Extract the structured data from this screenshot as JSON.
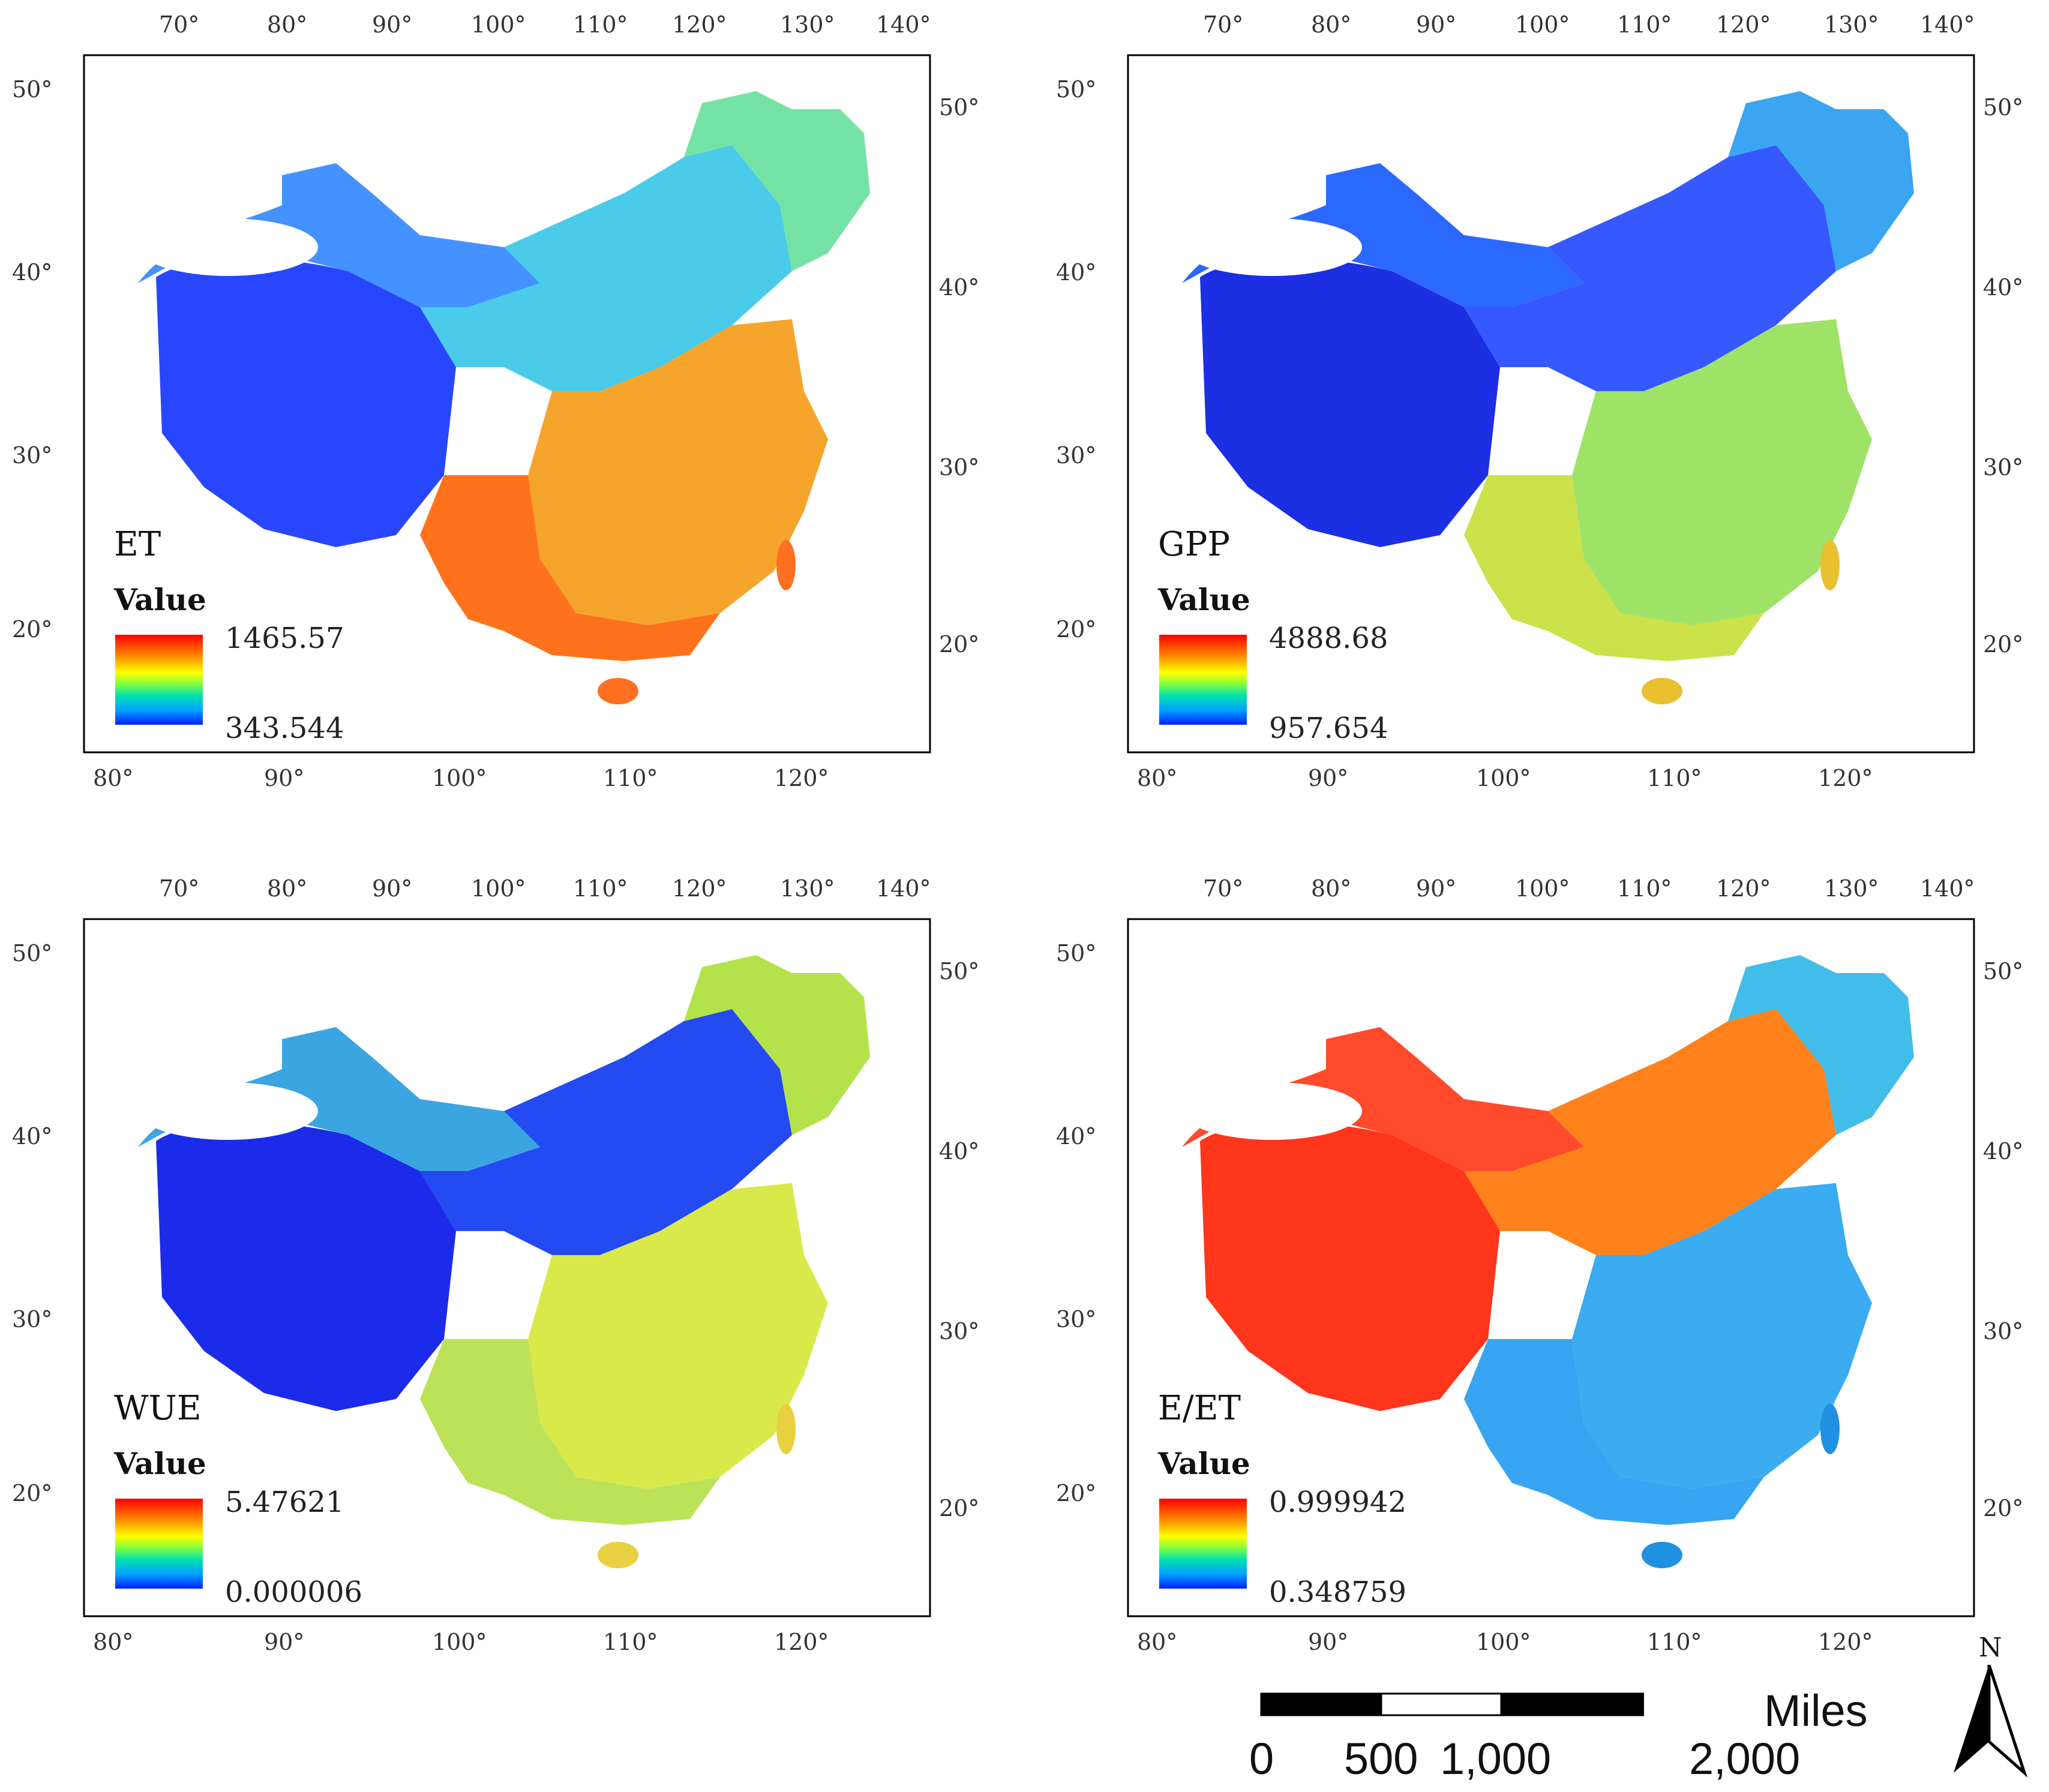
{
  "panels": [
    {
      "id": "et",
      "variable": "ET",
      "legend_title": "Value",
      "legend_max": "1465.57",
      "legend_min": "343.544",
      "top_lon_ticks": [
        "70°",
        "80°",
        "90°",
        "100°",
        "110°",
        "120°",
        "130°",
        "140°"
      ],
      "bottom_lon_ticks": [
        "80°",
        "90°",
        "100°",
        "110°",
        "120°"
      ],
      "left_lat_ticks": [
        "50°",
        "40°",
        "30°",
        "20°"
      ],
      "right_lat_ticks": [
        "50°",
        "40°",
        "30°",
        "20°"
      ],
      "colors": {
        "east": "#f4a020",
        "south": "#ff6a10",
        "north": "#40c8e8",
        "northeast": "#6ee0a0",
        "west": "#1e3cff",
        "northwest": "#3a8cff",
        "island": "#ff7020"
      }
    },
    {
      "id": "gpp",
      "variable": "GPP",
      "legend_title": "Value",
      "legend_max": "4888.68",
      "legend_min": "957.654",
      "top_lon_ticks": [
        "70°",
        "80°",
        "90°",
        "100°",
        "110°",
        "120°",
        "130°",
        "140°"
      ],
      "bottom_lon_ticks": [
        "80°",
        "90°",
        "100°",
        "110°",
        "120°"
      ],
      "left_lat_ticks": [
        "50°",
        "40°",
        "30°",
        "20°"
      ],
      "right_lat_ticks": [
        "50°",
        "40°",
        "30°",
        "20°"
      ],
      "colors": {
        "east": "#9ae060",
        "south": "#c8e040",
        "north": "#2a50ff",
        "northeast": "#30a0f0",
        "west": "#1024e0",
        "northwest": "#2060ff",
        "island": "#e8c030"
      }
    },
    {
      "id": "wue",
      "variable": "WUE",
      "legend_title": "Value",
      "legend_max": "5.47621",
      "legend_min": "0.000006",
      "top_lon_ticks": [
        "70°",
        "80°",
        "90°",
        "100°",
        "110°",
        "120°",
        "130°",
        "140°"
      ],
      "bottom_lon_ticks": [
        "80°",
        "90°",
        "100°",
        "110°",
        "120°"
      ],
      "left_lat_ticks": [
        "50°",
        "40°",
        "30°",
        "20°"
      ],
      "right_lat_ticks": [
        "50°",
        "40°",
        "30°",
        "20°"
      ],
      "colors": {
        "east": "#d8e840",
        "south": "#b8e050",
        "north": "#1840f0",
        "northeast": "#b0e040",
        "west": "#1020e8",
        "northwest": "#30a0e0",
        "island": "#e8d040"
      }
    },
    {
      "id": "eet",
      "variable": "E/ET",
      "legend_title": "Value",
      "legend_max": "0.999942",
      "legend_min": "0.348759",
      "top_lon_ticks": [
        "70°",
        "80°",
        "90°",
        "100°",
        "110°",
        "120°",
        "130°",
        "140°"
      ],
      "bottom_lon_ticks": [
        "80°",
        "90°",
        "100°",
        "110°",
        "120°"
      ],
      "left_lat_ticks": [
        "50°",
        "40°",
        "30°",
        "20°"
      ],
      "right_lat_ticks": [
        "50°",
        "40°",
        "30°",
        "20°"
      ],
      "colors": {
        "east": "#30a8f0",
        "south": "#2ca0f0",
        "north": "#ff7a10",
        "northeast": "#38b8e8",
        "west": "#ff2a10",
        "northwest": "#ff4020",
        "island": "#2090e0"
      }
    }
  ],
  "scale_bar": {
    "unit": "Miles",
    "labels": [
      "0",
      "500",
      "1,000",
      "2,000"
    ]
  },
  "north_arrow": {
    "label": "N"
  }
}
